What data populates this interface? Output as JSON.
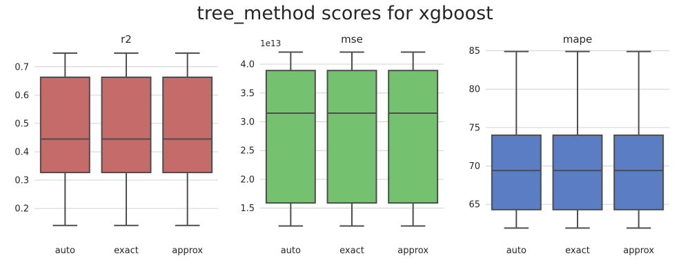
{
  "title": "tree_method scores for xgboost",
  "chart_data": [
    {
      "type": "box",
      "title": "r2",
      "categories": [
        "auto",
        "exact",
        "approx"
      ],
      "color": "#c56b69",
      "ylim": [
        0.12,
        0.77
      ],
      "yticks": [
        0.2,
        0.3,
        0.4,
        0.5,
        0.6,
        0.7
      ],
      "ytick_labels": [
        "0.2",
        "0.3",
        "0.4",
        "0.5",
        "0.6",
        "0.7"
      ],
      "offset_label": "",
      "boxes": [
        {
          "whisker_low": 0.14,
          "q1": 0.327,
          "median": 0.445,
          "q3": 0.663,
          "whisker_high": 0.748
        },
        {
          "whisker_low": 0.14,
          "q1": 0.327,
          "median": 0.445,
          "q3": 0.663,
          "whisker_high": 0.748
        },
        {
          "whisker_low": 0.14,
          "q1": 0.327,
          "median": 0.445,
          "q3": 0.663,
          "whisker_high": 0.748
        }
      ]
    },
    {
      "type": "box",
      "title": "mse",
      "categories": [
        "auto",
        "exact",
        "approx"
      ],
      "color": "#74c26f",
      "ylim": [
        1.1,
        4.3
      ],
      "yticks": [
        1.5,
        2.0,
        2.5,
        3.0,
        3.5,
        4.0
      ],
      "ytick_labels": [
        "1.5",
        "2.0",
        "2.5",
        "3.0",
        "3.5",
        "4.0"
      ],
      "offset_label": "1e13",
      "boxes": [
        {
          "whisker_low": 1.19,
          "q1": 1.59,
          "median": 3.15,
          "q3": 3.89,
          "whisker_high": 4.21
        },
        {
          "whisker_low": 1.19,
          "q1": 1.59,
          "median": 3.15,
          "q3": 3.89,
          "whisker_high": 4.21
        },
        {
          "whisker_low": 1.19,
          "q1": 1.59,
          "median": 3.15,
          "q3": 3.89,
          "whisker_high": 4.21
        }
      ]
    },
    {
      "type": "box",
      "title": "mape",
      "categories": [
        "auto",
        "exact",
        "approx"
      ],
      "color": "#5a7dc3",
      "ylim": [
        61.5,
        85.5
      ],
      "yticks": [
        65,
        70,
        75,
        80,
        85
      ],
      "ytick_labels": [
        "65",
        "70",
        "75",
        "80",
        "85"
      ],
      "offset_label": "",
      "boxes": [
        {
          "whisker_low": 61.9,
          "q1": 64.3,
          "median": 69.4,
          "q3": 74.0,
          "whisker_high": 84.9
        },
        {
          "whisker_low": 61.9,
          "q1": 64.3,
          "median": 69.4,
          "q3": 74.0,
          "whisker_high": 84.9
        },
        {
          "whisker_low": 61.9,
          "q1": 64.3,
          "median": 69.4,
          "q3": 74.0,
          "whisker_high": 84.9
        }
      ]
    }
  ]
}
